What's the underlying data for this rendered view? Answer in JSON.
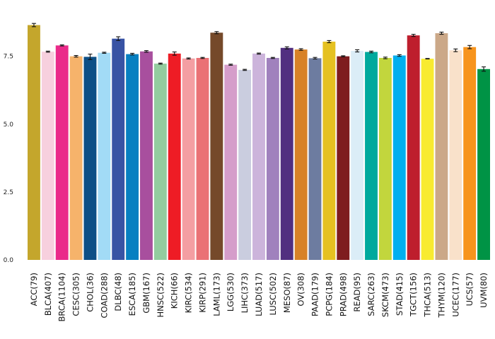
{
  "chart_data": {
    "type": "bar",
    "title": "",
    "xlabel": "",
    "ylabel": "",
    "ylim": [
      0,
      9.0
    ],
    "yticks": [
      0,
      2.5,
      5,
      7.5
    ],
    "ytick_labels": [
      "0.0",
      "2.5",
      "5.0",
      "7.5"
    ],
    "grid": false,
    "legend": "none",
    "error_bars": true,
    "categories": [
      "ACC(79)",
      "BLCA(407)",
      "BRCA(1104)",
      "CESC(305)",
      "CHOL(36)",
      "COAD(288)",
      "DLBC(48)",
      "ESCA(185)",
      "GBM(167)",
      "HNSC(522)",
      "KICH(66)",
      "KIRC(534)",
      "KIRP(291)",
      "LAML(173)",
      "LGG(530)",
      "LIHC(373)",
      "LUAD(517)",
      "LUSC(502)",
      "MESO(87)",
      "OV(308)",
      "PAAD(179)",
      "PCPG(184)",
      "PRAD(498)",
      "READ(95)",
      "SARC(263)",
      "SKCM(473)",
      "STAD(415)",
      "TGCT(156)",
      "THCA(513)",
      "THYM(120)",
      "UCEC(177)",
      "UCS(57)",
      "UVM(80)"
    ],
    "values": [
      8.65,
      7.67,
      7.9,
      7.5,
      7.48,
      7.63,
      8.15,
      7.58,
      7.68,
      7.23,
      7.6,
      7.42,
      7.44,
      8.37,
      7.19,
      7.0,
      7.6,
      7.44,
      7.81,
      7.75,
      7.43,
      8.04,
      7.5,
      7.7,
      7.66,
      7.44,
      7.53,
      8.27,
      7.41,
      8.35,
      7.72,
      7.84,
      7.03
    ],
    "errors": [
      0.06,
      0.02,
      0.02,
      0.03,
      0.1,
      0.02,
      0.07,
      0.03,
      0.03,
      0.02,
      0.06,
      0.02,
      0.02,
      0.04,
      0.02,
      0.02,
      0.02,
      0.02,
      0.04,
      0.03,
      0.03,
      0.04,
      0.02,
      0.04,
      0.03,
      0.03,
      0.03,
      0.04,
      0.01,
      0.04,
      0.05,
      0.06,
      0.08
    ],
    "colors": [
      "#C4A62C",
      "#F7D0DE",
      "#EA2A8A",
      "#F6B36B",
      "#0D4F86",
      "#A2DBF6",
      "#3853A4",
      "#0780C1",
      "#A84F9E",
      "#93CC9F",
      "#EE1C25",
      "#F49EA2",
      "#EA7175",
      "#75492A",
      "#D59DCA",
      "#CACDDF",
      "#CCB4DB",
      "#A081BD",
      "#512F80",
      "#D88227",
      "#6D7CA0",
      "#E5C121",
      "#7E1C1F",
      "#DBEDF7",
      "#00A99D",
      "#C2D63D",
      "#00AFEF",
      "#BE1E2D",
      "#F8EB30",
      "#CBA888",
      "#F9E1CA",
      "#F7941D",
      "#009345"
    ]
  }
}
